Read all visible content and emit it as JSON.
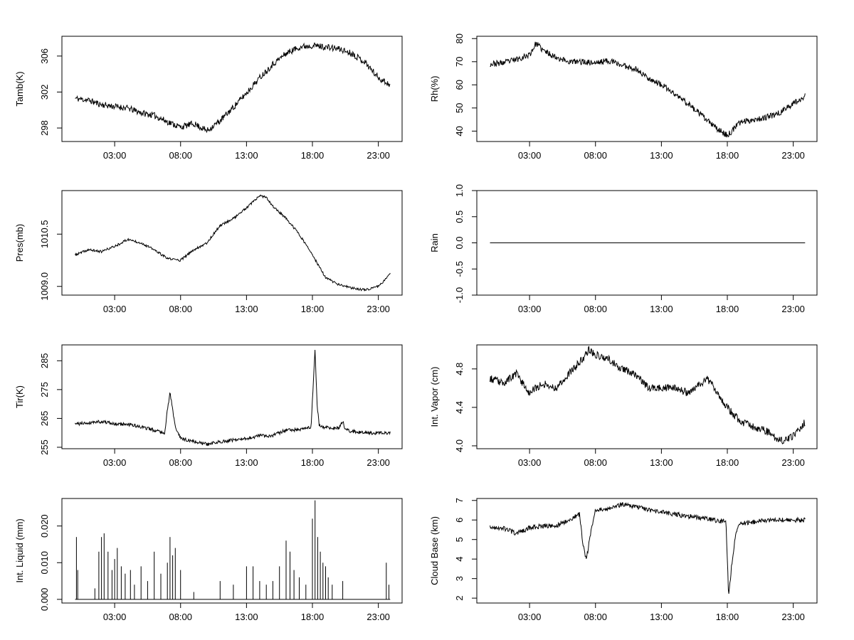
{
  "figure": {
    "title": ""
  },
  "chart_data": [
    {
      "type": "line",
      "title": "",
      "ylabel": "Tamb(K)",
      "xlabel": "",
      "x_ticks": [
        3,
        8,
        13,
        18,
        23
      ],
      "x_tick_labels": [
        "03:00",
        "08:00",
        "13:00",
        "18:00",
        "23:00"
      ],
      "xlim": [
        -1,
        24.8
      ],
      "ylim": [
        296.5,
        308.2
      ],
      "y_ticks": [
        298,
        302,
        306
      ],
      "y_tick_labels": [
        "298",
        "302",
        "306"
      ],
      "x": [
        0,
        1,
        2,
        3,
        4,
        5,
        6,
        7,
        8,
        9,
        10,
        11,
        12,
        13,
        14,
        15,
        16,
        17,
        18,
        19,
        20,
        21,
        22,
        23,
        23.9
      ],
      "y": [
        301.3,
        301.1,
        300.6,
        300.4,
        300.2,
        299.7,
        299.4,
        298.7,
        298.1,
        298.5,
        297.7,
        298.8,
        300.3,
        301.9,
        303.6,
        305.1,
        306.3,
        307.0,
        307.2,
        307.0,
        306.8,
        306.3,
        305.3,
        303.6,
        302.8
      ],
      "noise": 0.35,
      "seed": 11
    },
    {
      "type": "line",
      "title": "",
      "ylabel": "Rh(%)",
      "xlabel": "",
      "x_ticks": [
        3,
        8,
        13,
        18,
        23
      ],
      "x_tick_labels": [
        "03:00",
        "08:00",
        "13:00",
        "18:00",
        "23:00"
      ],
      "xlim": [
        -1,
        24.8
      ],
      "ylim": [
        35.5,
        81
      ],
      "y_ticks": [
        40,
        50,
        60,
        70,
        80
      ],
      "y_tick_labels": [
        "40",
        "50",
        "60",
        "70",
        "80"
      ],
      "x": [
        0,
        1,
        2,
        3,
        3.5,
        4,
        5,
        6,
        7,
        8,
        9,
        10,
        11,
        12,
        13,
        14,
        15,
        16,
        17,
        18,
        19,
        20,
        21,
        22,
        23,
        23.9
      ],
      "y": [
        69,
        69.5,
        71,
        73,
        78,
        75,
        72,
        70,
        70,
        69.5,
        70.5,
        68.5,
        67,
        63,
        60,
        56,
        52,
        47,
        42,
        38,
        44,
        45,
        46,
        48,
        52,
        55
      ],
      "noise": 1.3,
      "seed": 23
    },
    {
      "type": "line",
      "title": "",
      "ylabel": "Pres(mb)",
      "xlabel": "",
      "x_ticks": [
        3,
        8,
        13,
        18,
        23
      ],
      "x_tick_labels": [
        "03:00",
        "08:00",
        "13:00",
        "18:00",
        "23:00"
      ],
      "xlim": [
        -1,
        24.8
      ],
      "ylim": [
        1008.75,
        1011.75
      ],
      "y_ticks": [
        1009.0,
        1010.5
      ],
      "y_tick_labels": [
        "1009.0",
        "1010.5"
      ],
      "x": [
        0,
        1,
        2,
        3,
        4,
        5,
        6,
        7,
        8,
        9,
        10,
        11,
        12,
        13,
        14,
        14.5,
        15,
        16,
        17,
        18,
        19,
        20,
        21,
        22,
        23,
        23.9
      ],
      "y": [
        1009.9,
        1010.05,
        1010.0,
        1010.15,
        1010.35,
        1010.25,
        1010.05,
        1009.8,
        1009.75,
        1010.05,
        1010.25,
        1010.75,
        1010.95,
        1011.25,
        1011.6,
        1011.55,
        1011.3,
        1010.95,
        1010.5,
        1009.9,
        1009.25,
        1009.05,
        1008.95,
        1008.9,
        1009.0,
        1009.35
      ],
      "noise": 0.035,
      "seed": 37
    },
    {
      "type": "line",
      "title": "",
      "ylabel": "Rain",
      "xlabel": "",
      "x_ticks": [
        3,
        8,
        13,
        18,
        23
      ],
      "x_tick_labels": [
        "03:00",
        "08:00",
        "13:00",
        "18:00",
        "23:00"
      ],
      "xlim": [
        -1,
        24.8
      ],
      "ylim": [
        -1.0,
        1.0
      ],
      "y_ticks": [
        -1.0,
        -0.5,
        0.0,
        0.5,
        1.0
      ],
      "y_tick_labels": [
        "-1.0",
        "-0.5",
        "0.0",
        "0.5",
        "1.0"
      ],
      "x": [
        0,
        23.9
      ],
      "y": [
        0,
        0
      ],
      "noise": 0,
      "seed": 1
    },
    {
      "type": "line",
      "title": "",
      "ylabel": "Tir(K)",
      "xlabel": "",
      "x_ticks": [
        3,
        8,
        13,
        18,
        23
      ],
      "x_tick_labels": [
        "03:00",
        "08:00",
        "13:00",
        "18:00",
        "23:00"
      ],
      "xlim": [
        -1,
        24.8
      ],
      "ylim": [
        254.5,
        290.5
      ],
      "y_ticks": [
        255,
        265,
        275,
        285
      ],
      "y_tick_labels": [
        "255",
        "265",
        "275",
        "285"
      ],
      "x": [
        0,
        1,
        2,
        3,
        4,
        5,
        6,
        6.8,
        7.0,
        7.2,
        7.4,
        7.6,
        8,
        9,
        10,
        11,
        12,
        13,
        14,
        15,
        16,
        17,
        17.9,
        18.05,
        18.2,
        18.35,
        18.5,
        18.7,
        19,
        20,
        20.3,
        20.5,
        21,
        22,
        23,
        23.9
      ],
      "y": [
        263,
        263.5,
        264,
        263,
        263,
        262,
        261,
        260,
        268,
        274,
        268,
        262,
        258,
        257,
        256,
        257,
        257.5,
        258,
        259,
        259,
        261,
        261,
        262,
        276,
        289,
        270,
        263,
        262,
        262,
        261.5,
        264,
        261,
        260.5,
        260,
        260,
        260
      ],
      "noise": 0.6,
      "seed": 41
    },
    {
      "type": "line",
      "title": "",
      "ylabel": "Int. Vapor (cm)",
      "xlabel": "",
      "x_ticks": [
        3,
        8,
        13,
        18,
        23
      ],
      "x_tick_labels": [
        "03:00",
        "08:00",
        "13:00",
        "18:00",
        "23:00"
      ],
      "xlim": [
        -1,
        24.8
      ],
      "ylim": [
        3.97,
        5.05
      ],
      "y_ticks": [
        4.0,
        4.4,
        4.8
      ],
      "y_tick_labels": [
        "4.0",
        "4.4",
        "4.8"
      ],
      "x": [
        0,
        1,
        2,
        3,
        4,
        5,
        6,
        7,
        7.5,
        8,
        9,
        10,
        11,
        12,
        13,
        14,
        15,
        16,
        16.5,
        17,
        18,
        19,
        20,
        21,
        22,
        23,
        23.9
      ],
      "y": [
        4.7,
        4.65,
        4.75,
        4.55,
        4.65,
        4.6,
        4.75,
        4.9,
        5.0,
        4.95,
        4.9,
        4.8,
        4.75,
        4.6,
        4.6,
        4.6,
        4.55,
        4.65,
        4.7,
        4.6,
        4.4,
        4.25,
        4.2,
        4.15,
        4.05,
        4.1,
        4.25
      ],
      "noise": 0.04,
      "seed": 53
    },
    {
      "type": "line",
      "title": "",
      "ylabel": "Int. Liquid (mm)",
      "xlabel": "",
      "x_ticks": [
        3,
        8,
        13,
        18,
        23
      ],
      "x_tick_labels": [
        "03:00",
        "08:00",
        "13:00",
        "18:00",
        "23:00"
      ],
      "xlim": [
        -1,
        24.8
      ],
      "ylim": [
        -0.001,
        0.0275
      ],
      "y_ticks": [
        0.0,
        0.01,
        0.02
      ],
      "y_tick_labels": [
        "0.000",
        "0.010",
        "0.020"
      ],
      "spikes_x": [
        0.1,
        0.2,
        1.5,
        1.8,
        2.0,
        2.2,
        2.5,
        2.8,
        3.0,
        3.2,
        3.5,
        3.8,
        4.2,
        4.5,
        5.0,
        5.5,
        6.0,
        6.5,
        7.0,
        7.2,
        7.4,
        7.6,
        8.0,
        9.0,
        11.0,
        12.0,
        13.0,
        13.5,
        14.0,
        14.5,
        15.0,
        15.5,
        16.0,
        16.3,
        16.6,
        17.0,
        17.5,
        18.0,
        18.2,
        18.4,
        18.6,
        18.8,
        19.0,
        19.2,
        19.5,
        20.3,
        23.6,
        23.8
      ],
      "spikes_y": [
        0.017,
        0.008,
        0.003,
        0.013,
        0.017,
        0.018,
        0.013,
        0.008,
        0.011,
        0.014,
        0.009,
        0.007,
        0.008,
        0.004,
        0.009,
        0.005,
        0.013,
        0.007,
        0.01,
        0.017,
        0.012,
        0.014,
        0.008,
        0.002,
        0.005,
        0.004,
        0.009,
        0.009,
        0.005,
        0.004,
        0.005,
        0.009,
        0.016,
        0.013,
        0.008,
        0.006,
        0.004,
        0.022,
        0.027,
        0.017,
        0.013,
        0.01,
        0.009,
        0.006,
        0.004,
        0.005,
        0.01,
        0.004
      ]
    },
    {
      "type": "line",
      "title": "",
      "ylabel": "Cloud Base (km)",
      "xlabel": "",
      "x_ticks": [
        3,
        8,
        13,
        18,
        23
      ],
      "x_tick_labels": [
        "03:00",
        "08:00",
        "13:00",
        "18:00",
        "23:00"
      ],
      "xlim": [
        -1,
        24.8
      ],
      "ylim": [
        1.75,
        7.1
      ],
      "y_ticks": [
        2,
        3,
        4,
        5,
        6,
        7
      ],
      "y_tick_labels": [
        "2",
        "3",
        "4",
        "5",
        "6",
        "7"
      ],
      "x": [
        0,
        1,
        2,
        3,
        4,
        5,
        6,
        6.8,
        7.0,
        7.2,
        7.3,
        7.6,
        8.0,
        9,
        10,
        11,
        12,
        13,
        14,
        15,
        16,
        17,
        17.9,
        18.1,
        18.3,
        18.6,
        18.9,
        19,
        20,
        21,
        22,
        23,
        23.9
      ],
      "y": [
        5.6,
        5.6,
        5.3,
        5.6,
        5.7,
        5.7,
        6.0,
        6.3,
        5.0,
        4.3,
        3.9,
        5.2,
        6.5,
        6.6,
        6.8,
        6.7,
        6.5,
        6.4,
        6.3,
        6.2,
        6.1,
        6.0,
        5.9,
        2.0,
        3.5,
        5.2,
        5.8,
        5.8,
        5.9,
        6.0,
        6.0,
        6.0,
        6.0
      ],
      "noise": 0.12,
      "seed": 67
    }
  ]
}
